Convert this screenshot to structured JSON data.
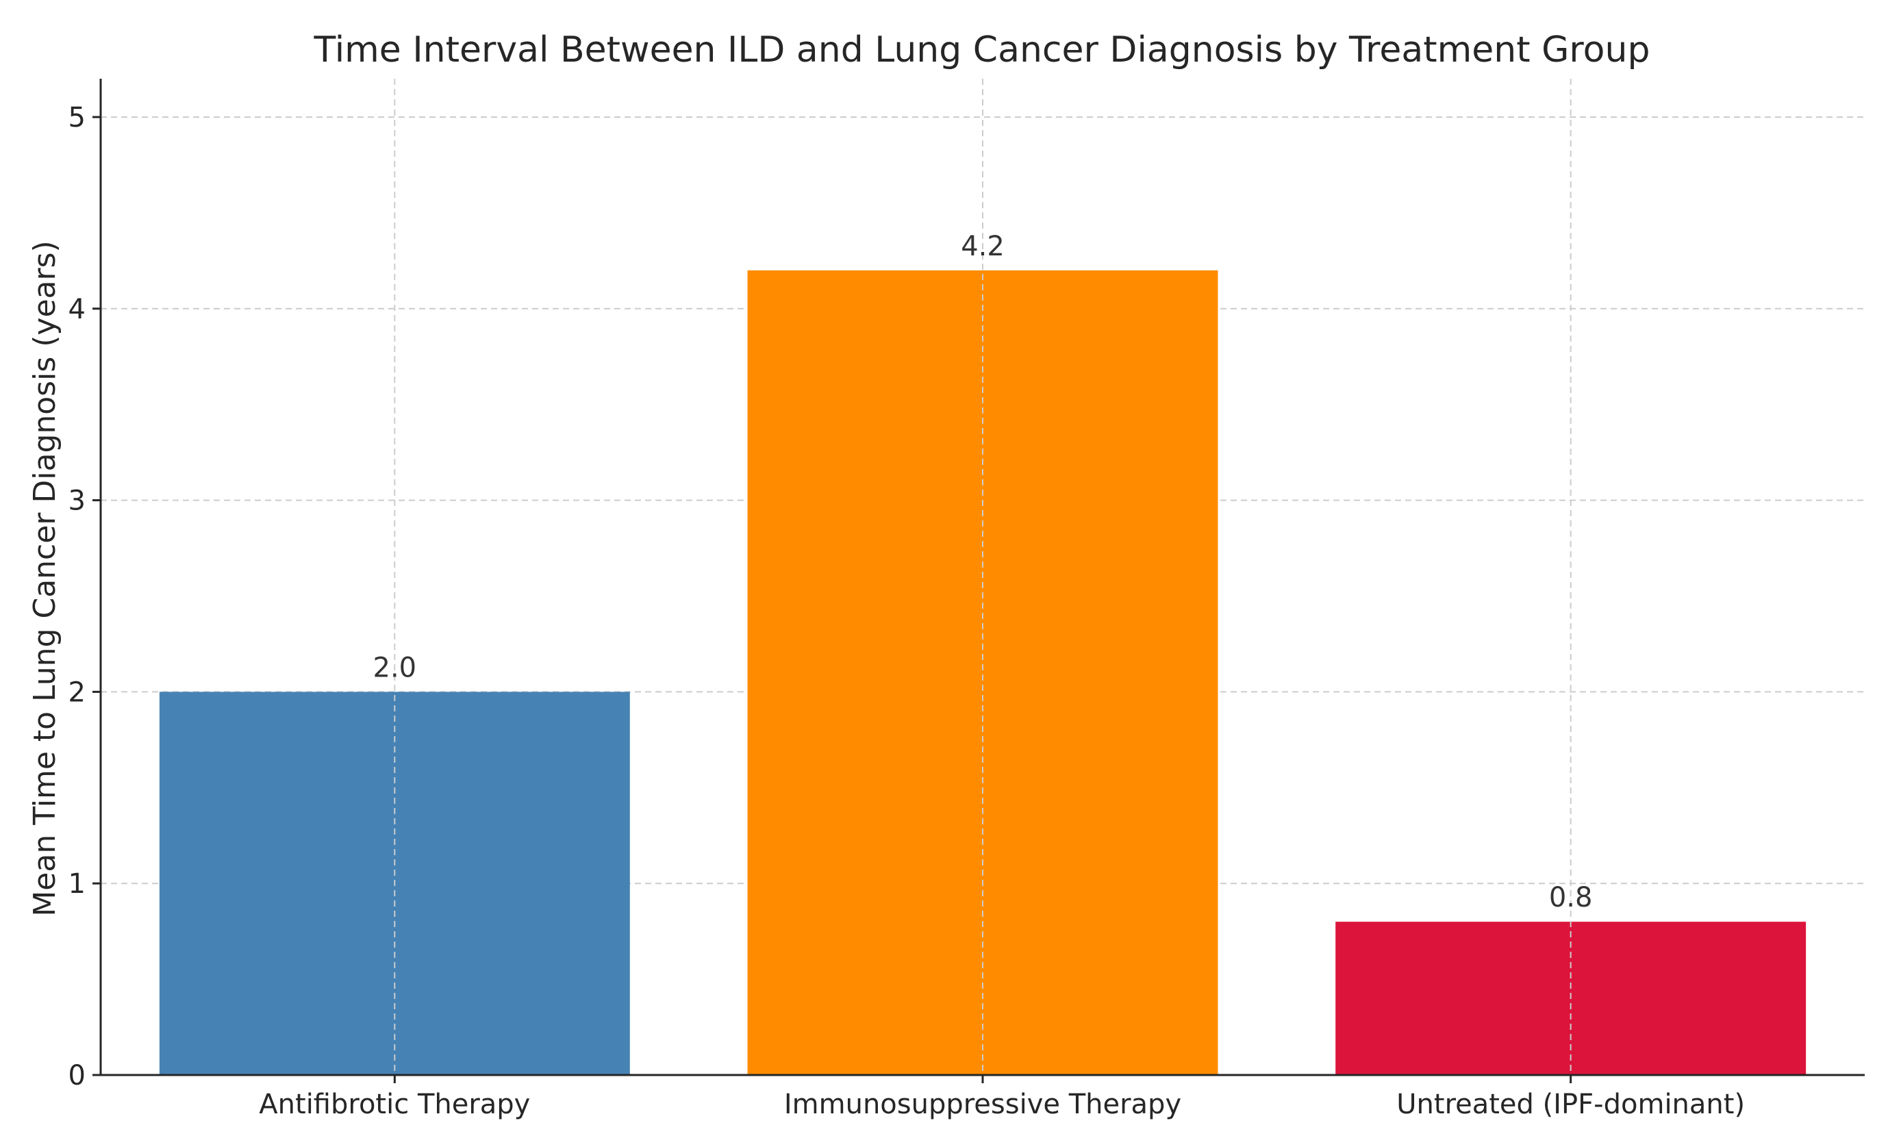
{
  "chart_data": {
    "type": "bar",
    "title": "Time Interval Between ILD and Lung Cancer Diagnosis by Treatment Group",
    "xlabel": "",
    "ylabel": "Mean Time to Lung Cancer Diagnosis (years)",
    "categories": [
      "Antifibrotic Therapy",
      "Immunosuppressive Therapy",
      "Untreated (IPF-dominant)"
    ],
    "values": [
      2.0,
      4.2,
      0.8
    ],
    "value_labels": [
      "2.0",
      "4.2",
      "0.8"
    ],
    "colors": [
      "#4682b4",
      "#ff8c00",
      "#dc143c"
    ],
    "ylim": [
      0,
      5.2
    ],
    "yticks": [
      0,
      1,
      2,
      3,
      4,
      5
    ],
    "ytick_labels": [
      "0",
      "1",
      "2",
      "3",
      "4",
      "5"
    ],
    "grid": true,
    "legend": "none"
  }
}
